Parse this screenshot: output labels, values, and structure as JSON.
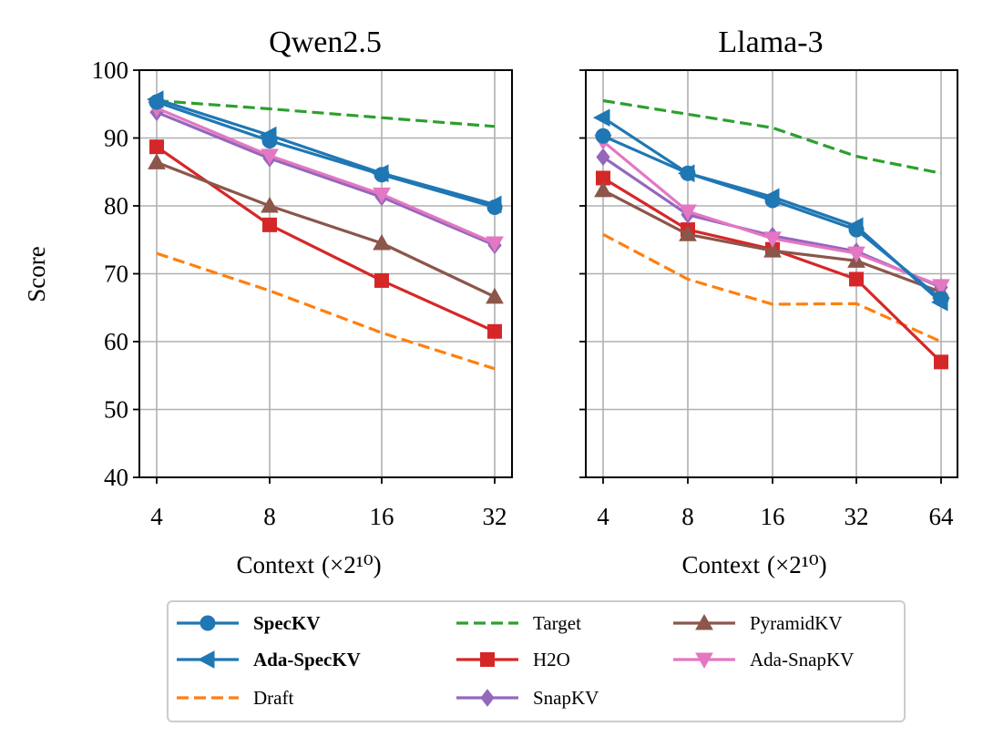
{
  "chart_data": [
    {
      "type": "line",
      "title": "Qwen2.5",
      "xlabel": "Context",
      "xlabel_unit": "(×2¹⁰)",
      "ylabel": "Score",
      "categories": [
        "4",
        "8",
        "16",
        "32"
      ],
      "ylim": [
        40,
        100
      ],
      "yticks": [
        "40",
        "50",
        "60",
        "70",
        "80",
        "90",
        "100"
      ],
      "series": [
        {
          "name": "Target",
          "values": [
            95.5,
            94.3,
            93.0,
            91.7
          ]
        },
        {
          "name": "Draft",
          "values": [
            73.0,
            67.5,
            61.3,
            56.0
          ]
        },
        {
          "name": "H2O",
          "values": [
            88.7,
            77.2,
            69.0,
            61.5
          ]
        },
        {
          "name": "PyramidKV",
          "values": [
            86.4,
            80.0,
            74.5,
            66.6
          ]
        },
        {
          "name": "SnapKV",
          "values": [
            93.8,
            87.0,
            81.3,
            74.2
          ]
        },
        {
          "name": "Ada-SnapKV",
          "values": [
            94.4,
            87.4,
            81.7,
            74.5
          ]
        },
        {
          "name": "SpecKV",
          "values": [
            95.3,
            89.6,
            84.6,
            79.8
          ]
        },
        {
          "name": "Ada-SpecKV",
          "values": [
            95.7,
            90.4,
            84.8,
            80.2
          ]
        }
      ]
    },
    {
      "type": "line",
      "title": "Llama-3",
      "xlabel": "Context",
      "xlabel_unit": "(×2¹⁰)",
      "ylabel": "",
      "categories": [
        "4",
        "8",
        "16",
        "32",
        "64"
      ],
      "ylim": [
        40,
        100
      ],
      "series": [
        {
          "name": "Target",
          "values": [
            95.5,
            93.5,
            91.5,
            87.3,
            84.8
          ]
        },
        {
          "name": "Draft",
          "values": [
            75.8,
            69.2,
            65.5,
            65.6,
            60.0
          ]
        },
        {
          "name": "H2O",
          "values": [
            84.1,
            76.5,
            73.6,
            69.2,
            57.0
          ]
        },
        {
          "name": "PyramidKV",
          "values": [
            82.3,
            75.8,
            73.4,
            71.9,
            67.3
          ]
        },
        {
          "name": "SnapKV",
          "values": [
            87.2,
            78.7,
            75.6,
            73.3,
            68.0
          ]
        },
        {
          "name": "Ada-SnapKV",
          "values": [
            89.5,
            79.2,
            75.2,
            73.0,
            68.2
          ]
        },
        {
          "name": "SpecKV",
          "values": [
            90.3,
            84.8,
            80.8,
            76.5,
            66.3
          ]
        },
        {
          "name": "Ada-SpecKV",
          "values": [
            93.0,
            84.8,
            81.3,
            77.0,
            65.8
          ]
        }
      ]
    }
  ],
  "styles": {
    "Target": {
      "color": "#2ca02c",
      "dash": true,
      "marker": "none"
    },
    "Draft": {
      "color": "#ff7f0e",
      "dash": true,
      "marker": "none"
    },
    "H2O": {
      "color": "#d62728",
      "dash": false,
      "marker": "square"
    },
    "PyramidKV": {
      "color": "#8c564b",
      "dash": false,
      "marker": "triangle-up"
    },
    "SnapKV": {
      "color": "#9467bd",
      "dash": false,
      "marker": "diamond"
    },
    "Ada-SnapKV": {
      "color": "#e377c2",
      "dash": false,
      "marker": "triangle-down"
    },
    "SpecKV": {
      "color": "#1f77b4",
      "dash": false,
      "marker": "circle"
    },
    "Ada-SpecKV": {
      "color": "#1f77b4",
      "dash": false,
      "marker": "triangle-left"
    }
  },
  "legend": {
    "placement": "bottom",
    "columns": [
      [
        {
          "name": "SpecKV",
          "bold": true
        },
        {
          "name": "Ada-SpecKV",
          "bold": true
        },
        {
          "name": "Draft",
          "bold": false
        }
      ],
      [
        {
          "name": "Target",
          "bold": false
        },
        {
          "name": "H2O",
          "bold": false
        },
        {
          "name": "SnapKV",
          "bold": false
        }
      ],
      [
        {
          "name": "PyramidKV",
          "bold": false
        },
        {
          "name": "Ada-SnapKV",
          "bold": false
        }
      ]
    ]
  }
}
